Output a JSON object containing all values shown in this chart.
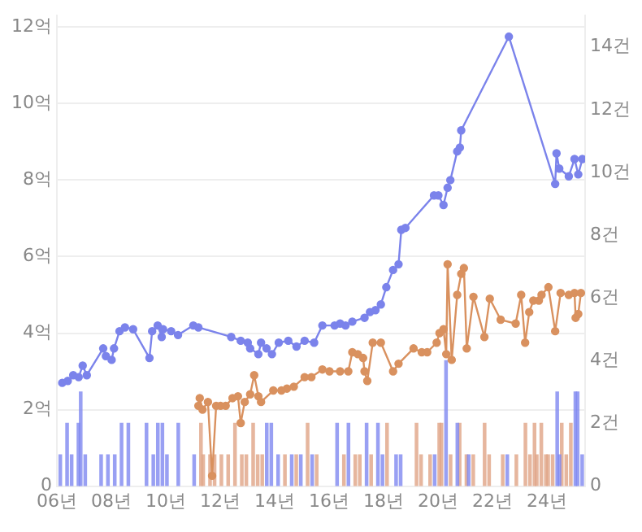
{
  "chart_data": {
    "type": "line",
    "xlim": [
      "2006",
      "2025-05-27"
    ],
    "xticks": [
      {
        "value": "2006",
        "label": "06년"
      },
      {
        "value": "2008",
        "label": "08년"
      },
      {
        "value": "2010",
        "label": "10년"
      },
      {
        "value": "2012",
        "label": "12년"
      },
      {
        "value": "2014",
        "label": "14년"
      },
      {
        "value": "2016",
        "label": "16년"
      },
      {
        "value": "2018",
        "label": "18년"
      },
      {
        "value": "2020",
        "label": "20년"
      },
      {
        "value": "2022",
        "label": "22년"
      },
      {
        "value": "2024",
        "label": "24년"
      }
    ],
    "ylim": [
      0,
      12.3
    ],
    "yticks": [
      0,
      {
        "value": 2,
        "label": "2억"
      },
      {
        "value": 4,
        "label": "4억"
      },
      {
        "value": 6,
        "label": "6억"
      },
      {
        "value": 8,
        "label": "8억"
      },
      {
        "value": 10,
        "label": "10억"
      },
      {
        "value": 12,
        "label": "12억"
      }
    ],
    "y2lim": [
      0,
      15
    ],
    "y2ticks": [
      0,
      {
        "value": 2,
        "label": "2건"
      },
      {
        "value": 4,
        "label": "4건"
      },
      {
        "value": 6,
        "label": "6건"
      },
      {
        "value": 8,
        "label": "8건"
      },
      {
        "value": 10,
        "label": "10건"
      },
      {
        "value": 12,
        "label": "12건"
      },
      {
        "value": 14,
        "label": "14건"
      }
    ],
    "grid": "y",
    "legend": false,
    "marker": "circle",
    "line_style": "solid",
    "series": [
      {
        "color": "#7b83eb",
        "x": [
          "2006-03-14",
          "2006-05-27",
          "2006-08-08",
          "2006-10-20",
          "2006-12-13",
          "2007-02-06",
          "2007-09-14",
          "2007-10-20",
          "2008-01-05",
          "2008-02-06",
          "2008-04-20",
          "2008-07-02",
          "2008-10-20",
          "2009-05-27",
          "2009-07-02",
          "2009-09-14",
          "2009-11-07",
          "2009-11-25",
          "2010-03-14",
          "2010-06-14",
          "2011-01-05",
          "2011-03-14",
          "2012-05-27",
          "2012-10-02",
          "2013-01-05",
          "2013-02-06",
          "2013-05-27",
          "2013-07-02",
          "2013-09-14",
          "2013-11-25",
          "2014-02-24",
          "2014-07-02",
          "2014-10-20",
          "2015-02-06",
          "2015-06-14",
          "2015-10-02",
          "2016-03-14",
          "2016-05-27",
          "2016-08-08",
          "2016-11-07",
          "2017-04-20",
          "2017-07-02",
          "2017-09-14",
          "2017-11-25",
          "2018-02-06",
          "2018-05-08",
          "2018-07-20",
          "2018-08-26",
          "2018-10-20",
          "2019-11-07",
          "2020-01-05",
          "2020-03-14",
          "2020-05-08",
          "2020-06-14",
          "2020-09-14",
          "2020-10-20",
          "2020-11-07",
          "2022-08-08",
          "2024-04-20",
          "2024-05-08",
          "2024-06-14",
          "2024-10-20",
          "2025-01-05",
          "2025-02-24",
          "2025-04-20"
        ],
        "values": [
          2.7,
          2.75,
          2.9,
          2.85,
          3.15,
          2.9,
          3.6,
          3.4,
          3.3,
          3.6,
          4.05,
          4.15,
          4.1,
          3.35,
          4.05,
          4.2,
          3.9,
          4.1,
          4.05,
          3.95,
          4.2,
          4.15,
          3.9,
          3.8,
          3.75,
          3.6,
          3.45,
          3.75,
          3.6,
          3.45,
          3.75,
          3.8,
          3.65,
          3.8,
          3.75,
          4.2,
          4.2,
          4.25,
          4.2,
          4.3,
          4.4,
          4.55,
          4.6,
          4.75,
          5.2,
          5.65,
          5.8,
          6.7,
          6.75,
          7.6,
          7.6,
          7.35,
          7.8,
          8.0,
          8.75,
          8.85,
          9.3,
          11.75,
          7.9,
          8.7,
          8.3,
          8.1,
          8.55,
          8.15,
          8.55
        ]
      },
      {
        "color": "#d9915f",
        "x": [
          "2011-03-14",
          "2011-04-01",
          "2011-05-08",
          "2011-07-20",
          "2011-09-14",
          "2011-11-07",
          "2012-01-05",
          "2012-03-14",
          "2012-06-14",
          "2012-08-26",
          "2012-10-02",
          "2012-11-25",
          "2013-02-06",
          "2013-04-01",
          "2013-05-27",
          "2013-07-02",
          "2013-12-13",
          "2014-04-01",
          "2014-06-14",
          "2014-09-14",
          "2015-02-06",
          "2015-05-08",
          "2015-10-02",
          "2016-01-05",
          "2016-05-27",
          "2016-09-14",
          "2016-11-07",
          "2017-01-20",
          "2017-04-01",
          "2017-04-20",
          "2017-05-27",
          "2017-08-08",
          "2017-11-25",
          "2018-05-08",
          "2018-07-20",
          "2019-02-06",
          "2019-05-27",
          "2019-08-08",
          "2019-12-13",
          "2020-01-20",
          "2020-03-14",
          "2020-04-20",
          "2020-05-08",
          "2020-07-02",
          "2020-09-14",
          "2020-11-07",
          "2020-12-13",
          "2021-01-20",
          "2021-04-20",
          "2021-09-14",
          "2021-11-25",
          "2022-04-20",
          "2022-11-07",
          "2023-01-20",
          "2023-03-14",
          "2023-05-08",
          "2023-07-02",
          "2023-09-14",
          "2023-10-20",
          "2024-01-20",
          "2024-04-20",
          "2024-07-02",
          "2024-10-20",
          "2025-01-05",
          "2025-01-20",
          "2025-02-24",
          "2025-04-01"
        ],
        "values": [
          2.1,
          2.3,
          2.0,
          2.2,
          0.27,
          2.1,
          2.1,
          2.1,
          2.3,
          2.35,
          1.65,
          2.2,
          2.4,
          2.9,
          2.35,
          2.2,
          2.5,
          2.5,
          2.55,
          2.6,
          2.85,
          2.85,
          3.05,
          3.0,
          3.0,
          3.0,
          3.5,
          3.45,
          3.35,
          3.0,
          2.75,
          3.75,
          3.75,
          3.0,
          3.2,
          3.6,
          3.5,
          3.5,
          3.75,
          4.0,
          4.1,
          3.45,
          5.8,
          3.3,
          5.0,
          5.55,
          5.7,
          3.6,
          4.95,
          3.9,
          4.9,
          4.35,
          4.25,
          5.0,
          3.75,
          4.55,
          4.85,
          4.85,
          5.0,
          5.2,
          4.05,
          5.05,
          5.0,
          5.05,
          4.4,
          4.5,
          5.05
        ]
      },
      {
        "type": "bar",
        "axis": "y2",
        "color": "#8088f0",
        "x": [
          "2006-02",
          "2006-05",
          "2006-07",
          "2006-10",
          "2006-11",
          "2007-01",
          "2007-08",
          "2007-11",
          "2008-02",
          "2008-05",
          "2008-08",
          "2009-04",
          "2009-07",
          "2009-09",
          "2009-11",
          "2010-01",
          "2010-06",
          "2011-01",
          "2013-09",
          "2013-11",
          "2014-02",
          "2014-08",
          "2014-12",
          "2015-05",
          "2016-04",
          "2016-09",
          "2017-05",
          "2017-10",
          "2017-12",
          "2018-06",
          "2018-08",
          "2019-11",
          "2020-04",
          "2020-09",
          "2021-02",
          "2022-07",
          "2024-05",
          "2024-06",
          "2025-01",
          "2025-02",
          "2025-04"
        ],
        "values": [
          1,
          2,
          1,
          2,
          3,
          1,
          1,
          1,
          1,
          2,
          2,
          2,
          1,
          2,
          2,
          1,
          2,
          1,
          2,
          2,
          1,
          1,
          1,
          1,
          2,
          2,
          2,
          2,
          1,
          1,
          1,
          1,
          4,
          2,
          1,
          1,
          3,
          1,
          3,
          3,
          1
        ]
      },
      {
        "type": "bar",
        "axis": "y2",
        "color": "#e0a486",
        "x": [
          "2011-04",
          "2011-05",
          "2011-08",
          "2011-10",
          "2012-01",
          "2012-04",
          "2012-07",
          "2012-10",
          "2012-12",
          "2013-03",
          "2013-05",
          "2013-07",
          "2014-05",
          "2014-10",
          "2015-03",
          "2015-07",
          "2016-07",
          "2016-12",
          "2017-02",
          "2017-07",
          "2018-02",
          "2019-03",
          "2019-05",
          "2019-09",
          "2020-01",
          "2020-02",
          "2020-06",
          "2020-10",
          "2021-01",
          "2021-04",
          "2021-09",
          "2021-11",
          "2022-05",
          "2022-11",
          "2023-03",
          "2023-05",
          "2023-07",
          "2023-08",
          "2023-10",
          "2023-12",
          "2024-01",
          "2024-03",
          "2024-07",
          "2024-09",
          "2024-11"
        ],
        "values": [
          2,
          1,
          1,
          1,
          1,
          1,
          2,
          1,
          1,
          2,
          1,
          1,
          1,
          1,
          2,
          1,
          1,
          1,
          1,
          1,
          2,
          2,
          1,
          1,
          2,
          2,
          1,
          2,
          1,
          1,
          2,
          1,
          1,
          1,
          2,
          1,
          2,
          1,
          2,
          1,
          1,
          1,
          2,
          1,
          2
        ]
      }
    ]
  }
}
